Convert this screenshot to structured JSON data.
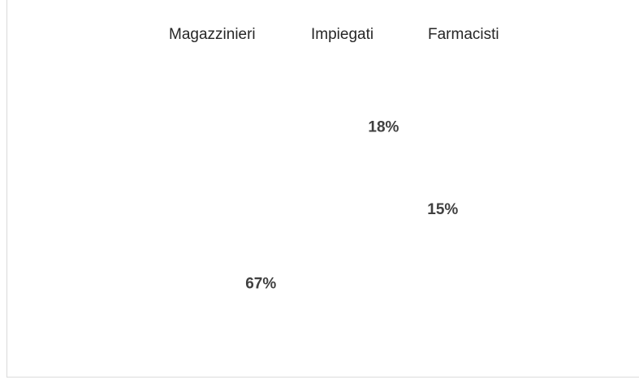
{
  "chart_data": {
    "type": "pie",
    "categories": [
      "Magazzinieri",
      "Impiegati",
      "Farmacisti"
    ],
    "values": [
      67,
      18,
      15
    ],
    "value_labels": [
      "67%",
      "18%",
      "15%"
    ],
    "colors": [
      "#ffffff",
      "#ffffff",
      "#ffffff"
    ],
    "legend": "top"
  }
}
